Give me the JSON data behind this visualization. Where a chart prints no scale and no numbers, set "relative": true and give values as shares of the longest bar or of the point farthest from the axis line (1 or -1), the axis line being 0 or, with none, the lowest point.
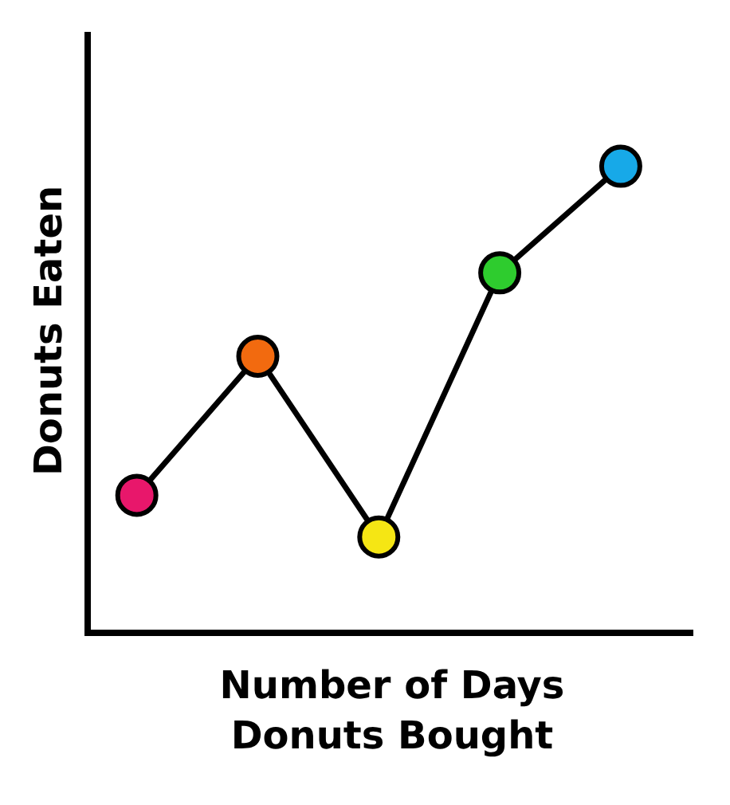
{
  "chart_data": {
    "type": "line",
    "xlabel": "Number of Days\nDonuts Bought",
    "ylabel": "Donuts Eaten",
    "categories": [
      null,
      null,
      null,
      null,
      null
    ],
    "relative": true,
    "marker": "circle",
    "grid": false,
    "series": [
      {
        "color": "#000000",
        "colors": [
          "#e8176b",
          "#f26a0f",
          "#f5e614",
          "#2ecc2e",
          "#17a9e8"
        ],
        "values": [
          0.29,
          0.59,
          0.2,
          0.77,
          1
        ]
      }
    ]
  }
}
